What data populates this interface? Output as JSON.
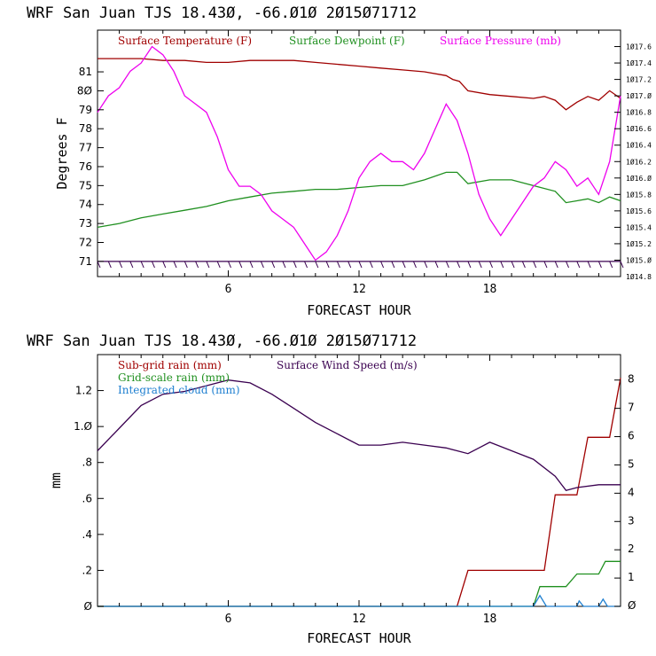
{
  "chart_data": [
    {
      "type": "line",
      "title": "WRF  San Juan TJS  18.43Ø, -66.Ø1Ø  2Ø15Ø71712",
      "xlabel": "FORECAST HOUR",
      "ylabel": "Degrees F",
      "xlim": [
        0,
        24
      ],
      "x_ticks": [
        6,
        12,
        18
      ],
      "x_tick_labels": [
        "6",
        "12",
        "18"
      ],
      "ylim": [
        70.2,
        83.2
      ],
      "y_ticks": [
        71,
        72,
        73,
        74,
        75,
        76,
        77,
        78,
        79,
        80,
        81
      ],
      "y_tick_labels": [
        "71",
        "72",
        "73",
        "74",
        "75",
        "76",
        "77",
        "78",
        "79",
        "8Ø",
        "81"
      ],
      "y2lim": [
        1014.8,
        1017.8
      ],
      "y2_ticks": [
        1014.8,
        1015.0,
        1015.2,
        1015.4,
        1015.6,
        1015.8,
        1016.0,
        1016.2,
        1016.4,
        1016.6,
        1016.8,
        1017.0,
        1017.2,
        1017.4,
        1017.6
      ],
      "y2_tick_labels": [
        "1Ø14.8",
        "1Ø15.Ø",
        "1Ø15.2",
        "1Ø15.4",
        "1Ø15.6",
        "1Ø15.8",
        "1Ø16.Ø",
        "1Ø16.2",
        "1Ø16.4",
        "1Ø16.6",
        "1Ø16.8",
        "1Ø17.Ø",
        "1Ø17.2",
        "1Ø17.4",
        "1Ø17.6"
      ],
      "grid": false,
      "legend_position": "top",
      "series": [
        {
          "name": "Surface Temperature (F)",
          "color": "#a00000",
          "axis": "left",
          "x": [
            0,
            1,
            2,
            3,
            4,
            5,
            6,
            7,
            8,
            9,
            10,
            11,
            12,
            13,
            14,
            15,
            16,
            16.3,
            16.6,
            17,
            18,
            19,
            20,
            20.5,
            21,
            21.5,
            22,
            22.5,
            23,
            23.5,
            24
          ],
          "y": [
            81.7,
            81.7,
            81.7,
            81.6,
            81.6,
            81.5,
            81.5,
            81.6,
            81.6,
            81.6,
            81.5,
            81.4,
            81.3,
            81.2,
            81.1,
            81.0,
            80.8,
            80.6,
            80.5,
            80.0,
            79.8,
            79.7,
            79.6,
            79.7,
            79.5,
            79.0,
            79.4,
            79.7,
            79.5,
            80.0,
            79.6
          ]
        },
        {
          "name": "Surface Dewpoint (F)",
          "color": "#209020",
          "axis": "left",
          "x": [
            0,
            1,
            2,
            3,
            4,
            5,
            6,
            7,
            8,
            9,
            10,
            11,
            12,
            13,
            14,
            15,
            16,
            16.5,
            17,
            18,
            19,
            20,
            21,
            21.5,
            22,
            22.5,
            23,
            23.5,
            24
          ],
          "y": [
            72.8,
            73.0,
            73.3,
            73.5,
            73.7,
            73.9,
            74.2,
            74.4,
            74.6,
            74.7,
            74.8,
            74.8,
            74.9,
            75.0,
            75.0,
            75.3,
            75.7,
            75.7,
            75.1,
            75.3,
            75.3,
            75.0,
            74.7,
            74.1,
            74.2,
            74.3,
            74.1,
            74.4,
            74.2
          ]
        },
        {
          "name": "Surface Pressure (mb)",
          "color": "#ee00ee",
          "axis": "right",
          "x": [
            0,
            0.5,
            1,
            1.5,
            2,
            2.5,
            3,
            3.5,
            4,
            4.5,
            5,
            5.5,
            6,
            6.5,
            7,
            7.5,
            8,
            8.5,
            9,
            9.5,
            10,
            10.5,
            11,
            11.5,
            12,
            12.5,
            13,
            13.5,
            14,
            14.5,
            15,
            15.5,
            16,
            16.5,
            17,
            17.5,
            18,
            18.5,
            19,
            19.5,
            20,
            20.5,
            21,
            21.5,
            22,
            22.5,
            23,
            23.5,
            24
          ],
          "y": [
            1016.8,
            1017.0,
            1017.1,
            1017.3,
            1017.4,
            1017.6,
            1017.5,
            1017.3,
            1017.0,
            1016.9,
            1016.8,
            1016.5,
            1016.1,
            1015.9,
            1015.9,
            1015.8,
            1015.6,
            1015.5,
            1015.4,
            1015.2,
            1015.0,
            1015.1,
            1015.3,
            1015.6,
            1016.0,
            1016.2,
            1016.3,
            1016.2,
            1016.2,
            1016.1,
            1016.3,
            1016.6,
            1016.9,
            1016.7,
            1016.3,
            1015.8,
            1015.5,
            1015.3,
            1015.5,
            1015.7,
            1015.9,
            1016.0,
            1016.2,
            1016.1,
            1015.9,
            1016.0,
            1015.8,
            1016.2,
            1017.0
          ]
        }
      ],
      "wind_barbs_y": 71
    },
    {
      "type": "line",
      "title": "WRF  San Juan TJS  18.43Ø, -66.Ø1Ø  2Ø15Ø71712",
      "xlabel": "FORECAST HOUR",
      "ylabel": "mm",
      "xlim": [
        0,
        24
      ],
      "x_ticks": [
        6,
        12,
        18
      ],
      "x_tick_labels": [
        "6",
        "12",
        "18"
      ],
      "ylim": [
        0,
        1.4
      ],
      "y_ticks": [
        0,
        0.2,
        0.4,
        0.6,
        0.8,
        1.0,
        1.2
      ],
      "y_tick_labels": [
        "Ø",
        ".2",
        ".4",
        ".6",
        ".8",
        "1.Ø",
        "1.2"
      ],
      "y2lim": [
        0,
        8.9
      ],
      "y2_ticks": [
        0,
        1,
        2,
        3,
        4,
        5,
        6,
        7,
        8
      ],
      "y2_tick_labels": [
        "Ø",
        "1",
        "2",
        "3",
        "4",
        "5",
        "6",
        "7",
        "8"
      ],
      "grid": false,
      "legend_position": "top",
      "series": [
        {
          "name": "Sub-grid rain (mm)",
          "color": "#a00000",
          "axis": "left",
          "x": [
            0,
            16.5,
            17,
            20.5,
            21,
            22,
            22.5,
            23.5,
            24
          ],
          "y": [
            0,
            0,
            0.2,
            0.2,
            0.62,
            0.62,
            0.94,
            0.94,
            1.27
          ]
        },
        {
          "name": "Grid-scale rain (mm)",
          "color": "#209020",
          "axis": "left",
          "x": [
            0,
            20,
            20.3,
            21.5,
            22,
            23,
            23.3,
            24
          ],
          "y": [
            0,
            0,
            0.11,
            0.11,
            0.18,
            0.18,
            0.25,
            0.25
          ]
        },
        {
          "name": "Integrated cloud (mm)",
          "color": "#1e7fd0",
          "axis": "left",
          "x": [
            0,
            18,
            19,
            20,
            20.1,
            20.3,
            20.6,
            21,
            22,
            22.1,
            22.3,
            23,
            23.2,
            23.4,
            24
          ],
          "y": [
            0,
            0,
            0,
            0,
            0.02,
            0.06,
            0,
            0,
            0,
            0.03,
            0,
            0,
            0.04,
            0,
            0
          ]
        },
        {
          "name": "Surface Wind Speed (m/s)",
          "color": "#3a0050",
          "axis": "right",
          "x": [
            0,
            1,
            2,
            3,
            4,
            5,
            6,
            7,
            8,
            9,
            10,
            11,
            12,
            13,
            14,
            15,
            16,
            17,
            17.5,
            18,
            19,
            20,
            21,
            21.5,
            22,
            23,
            24
          ],
          "y": [
            5.5,
            6.3,
            7.1,
            7.5,
            7.6,
            7.8,
            8.0,
            7.9,
            7.5,
            7.0,
            6.5,
            6.1,
            5.7,
            5.7,
            5.8,
            5.7,
            5.6,
            5.4,
            5.6,
            5.8,
            5.5,
            5.2,
            4.6,
            4.1,
            4.2,
            4.3,
            4.3
          ]
        }
      ]
    }
  ]
}
